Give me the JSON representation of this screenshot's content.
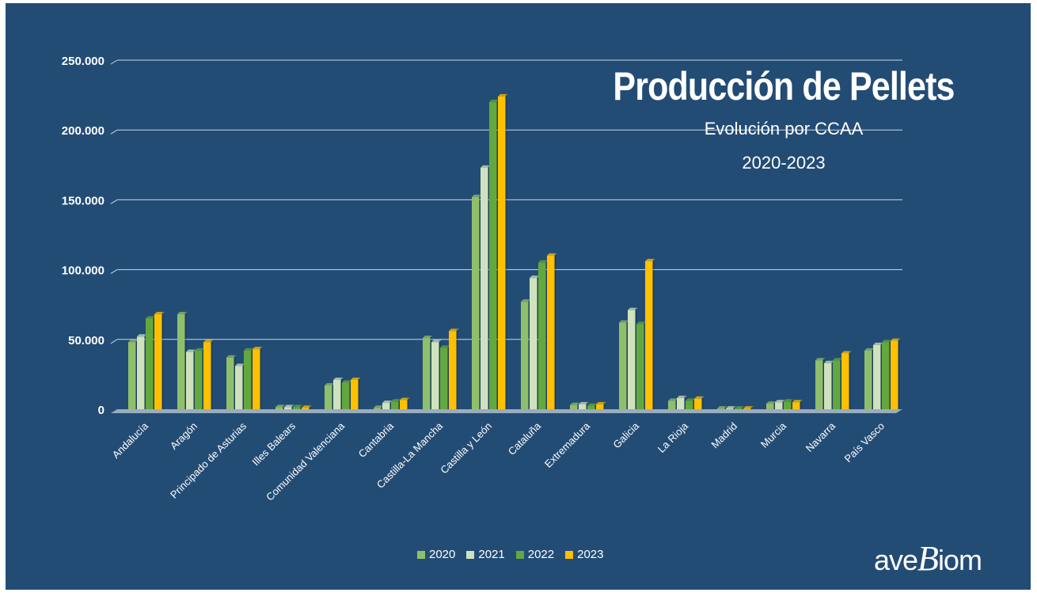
{
  "title": "Producción de Pellets",
  "subtitle": "Evolución por CCAA",
  "subtitle2": "2020-2023",
  "logo": {
    "part1": "ave",
    "part2": "B",
    "part3": "iom"
  },
  "colors": {
    "background": "#234c75",
    "series": [
      "#8fbf6a",
      "#cfe2bd",
      "#63a83e",
      "#ffc000"
    ],
    "gridline": "#c9d6e3",
    "floor": "#b8c4cf"
  },
  "chart_data": {
    "type": "bar",
    "title": "Producción de Pellets",
    "subtitle": "Evolución por CCAA 2020-2023",
    "xlabel": "",
    "ylabel": "",
    "ylim": [
      0,
      250000
    ],
    "yticks": [
      0,
      50000,
      100000,
      150000,
      200000,
      250000
    ],
    "ytick_labels": [
      "0",
      "50.000",
      "100.000",
      "150.000",
      "200.000",
      "250.000"
    ],
    "grid": true,
    "legend_position": "bottom",
    "categories": [
      "Andalucía",
      "Aragón",
      "Principado de Asturias",
      "Illes Balears",
      "Comunidad Valenciana",
      "Cantabria",
      "Castilla-La Mancha",
      "Castilla y León",
      "Cataluña",
      "Extremadura",
      "Galicia",
      "La Rioja",
      "Madrid",
      "Murcia",
      "Navarra",
      "País Vasco"
    ],
    "series": [
      {
        "name": "2020",
        "values": [
          48000,
          68000,
          37000,
          1500,
          17000,
          1000,
          51000,
          152000,
          77000,
          3000,
          62000,
          6000,
          500,
          4000,
          35000,
          42000
        ]
      },
      {
        "name": "2021",
        "values": [
          52000,
          41000,
          31000,
          1500,
          21000,
          4500,
          48000,
          173000,
          94000,
          3500,
          71000,
          8000,
          500,
          5000,
          33000,
          46000
        ]
      },
      {
        "name": "2022",
        "values": [
          65000,
          42000,
          42000,
          1500,
          19000,
          5500,
          44000,
          220000,
          105000,
          2500,
          61000,
          6000,
          500,
          5500,
          35000,
          48000
        ]
      },
      {
        "name": "2023",
        "values": [
          68000,
          48000,
          43000,
          1000,
          21000,
          6500,
          56000,
          224000,
          110000,
          3500,
          106000,
          7500,
          500,
          5000,
          40000,
          49000
        ]
      }
    ]
  }
}
